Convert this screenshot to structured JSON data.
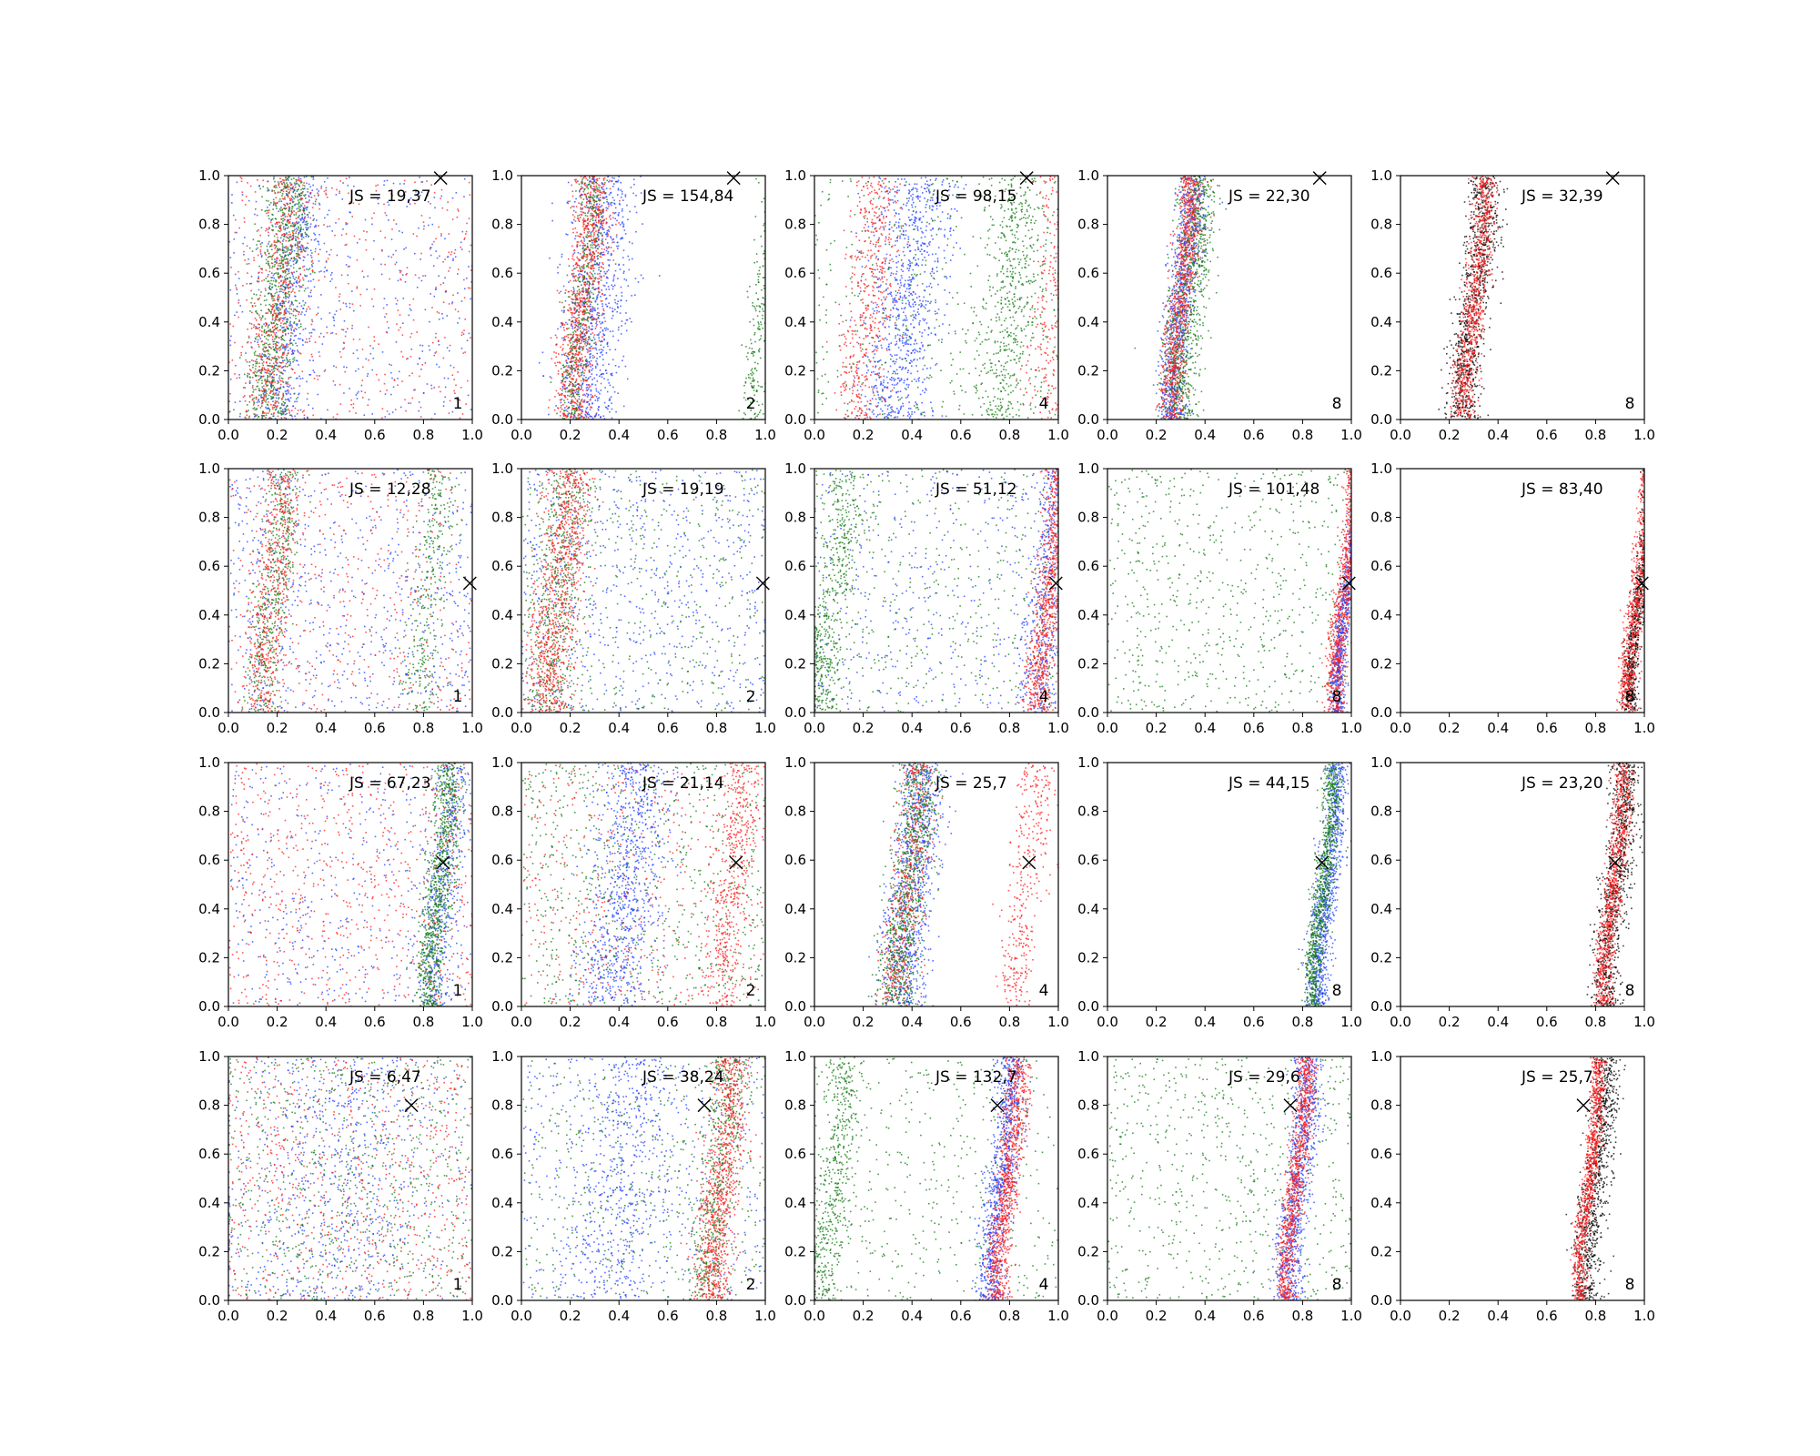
{
  "colors": {
    "blue": "#1f3fff",
    "green": "#127a12",
    "red": "#ff1a1a",
    "black": "#000000"
  },
  "chart_data": [
    {
      "type": "scatter",
      "row": 1,
      "col": 1,
      "js_label": "JS = 19,37",
      "corner_label": "1",
      "xlim": [
        0,
        1
      ],
      "ylim": [
        0,
        1
      ],
      "marker_x": [
        0.87,
        0.99
      ],
      "series": [
        {
          "color": "blue",
          "distribution": "diffuse + band",
          "band_center": 0.25,
          "band_width": 0.05
        },
        {
          "color": "green",
          "distribution": "band",
          "band_center": 0.2,
          "band_width": 0.05
        },
        {
          "color": "red",
          "distribution": "diffuse + band",
          "band_center": 0.2,
          "band_width": 0.05
        }
      ]
    },
    {
      "type": "scatter",
      "row": 1,
      "col": 2,
      "js_label": "JS = 154,84",
      "corner_label": "2",
      "xlim": [
        0,
        1
      ],
      "ylim": [
        0,
        1
      ],
      "marker_x": [
        0.87,
        0.99
      ],
      "series": [
        {
          "color": "blue",
          "distribution": "band",
          "band_center": 0.3,
          "band_width": 0.07
        },
        {
          "color": "green",
          "distribution": "bands",
          "band_center": 0.25,
          "band_width": 0.03,
          "band2_center": 0.99
        },
        {
          "color": "red",
          "distribution": "band",
          "band_center": 0.25,
          "band_width": 0.04
        }
      ]
    },
    {
      "type": "scatter",
      "row": 1,
      "col": 3,
      "js_label": "JS = 98,15",
      "corner_label": "4",
      "xlim": [
        0,
        1
      ],
      "ylim": [
        0,
        1
      ],
      "marker_x": [
        0.87,
        0.99
      ],
      "series": [
        {
          "color": "blue",
          "distribution": "band",
          "band_center": 0.37,
          "band_width": 0.08
        },
        {
          "color": "green",
          "distribution": "diffuse + band",
          "band_center": 0.8,
          "band_width": 0.06
        },
        {
          "color": "red",
          "distribution": "bands",
          "band_center": 0.22,
          "band_width": 0.05,
          "band2_center": 0.99
        }
      ]
    },
    {
      "type": "scatter",
      "row": 1,
      "col": 4,
      "js_label": "JS = 22,30",
      "corner_label": "8",
      "xlim": [
        0,
        1
      ],
      "ylim": [
        0,
        1
      ],
      "marker_x": [
        0.87,
        0.99
      ],
      "series": [
        {
          "color": "blue",
          "distribution": "band",
          "band_center": 0.3,
          "band_width": 0.03
        },
        {
          "color": "green",
          "distribution": "band",
          "band_center": 0.33,
          "band_width": 0.04
        },
        {
          "color": "red",
          "distribution": "band",
          "band_center": 0.3,
          "band_width": 0.025
        }
      ]
    },
    {
      "type": "scatter",
      "row": 1,
      "col": 5,
      "js_label": "JS = 32,39",
      "corner_label": "8",
      "xlim": [
        0,
        1
      ],
      "ylim": [
        0,
        1
      ],
      "marker_x": [
        0.87,
        0.99
      ],
      "series": [
        {
          "color": "black",
          "distribution": "band",
          "band_center": 0.3,
          "band_width": 0.035
        },
        {
          "color": "red",
          "distribution": "band",
          "band_center": 0.3,
          "band_width": 0.025
        }
      ]
    },
    {
      "type": "scatter",
      "row": 2,
      "col": 1,
      "js_label": "JS = 12,28",
      "corner_label": "1",
      "xlim": [
        0,
        1
      ],
      "ylim": [
        0,
        1
      ],
      "marker_x": [
        0.99,
        0.53
      ],
      "series": [
        {
          "color": "blue",
          "distribution": "diffuse",
          "band_center": 0.5,
          "band_width": 0.3
        },
        {
          "color": "green",
          "distribution": "bands",
          "band_center": 0.18,
          "band_width": 0.04,
          "band2_center": 0.82
        },
        {
          "color": "red",
          "distribution": "diffuse + band",
          "band_center": 0.18,
          "band_width": 0.04
        }
      ]
    },
    {
      "type": "scatter",
      "row": 2,
      "col": 2,
      "js_label": "JS = 19,19",
      "corner_label": "2",
      "xlim": [
        0,
        1
      ],
      "ylim": [
        0,
        1
      ],
      "marker_x": [
        0.99,
        0.53
      ],
      "series": [
        {
          "color": "blue",
          "distribution": "diffuse",
          "band_center": 0.5,
          "band_width": 0.3
        },
        {
          "color": "green",
          "distribution": "diffuse + band",
          "band_center": 0.15,
          "band_width": 0.05
        },
        {
          "color": "red",
          "distribution": "band",
          "band_center": 0.15,
          "band_width": 0.05
        }
      ]
    },
    {
      "type": "scatter",
      "row": 2,
      "col": 3,
      "js_label": "JS = 51,12",
      "corner_label": "4",
      "xlim": [
        0,
        1
      ],
      "ylim": [
        0,
        1
      ],
      "marker_x": [
        0.99,
        0.53
      ],
      "series": [
        {
          "color": "blue",
          "distribution": "diffuse + band",
          "band_center": 0.95,
          "band_width": 0.04
        },
        {
          "color": "green",
          "distribution": "diffuse + band",
          "band_center": 0.08,
          "band_width": 0.04
        },
        {
          "color": "red",
          "distribution": "band",
          "band_center": 0.96,
          "band_width": 0.03
        }
      ]
    },
    {
      "type": "scatter",
      "row": 2,
      "col": 4,
      "js_label": "JS = 101,48",
      "corner_label": "8",
      "xlim": [
        0,
        1
      ],
      "ylim": [
        0,
        1
      ],
      "marker_x": [
        0.99,
        0.53
      ],
      "series": [
        {
          "color": "green",
          "distribution": "diffuse",
          "band_center": 0.5,
          "band_width": 0.3
        },
        {
          "color": "blue",
          "distribution": "band",
          "band_center": 0.98,
          "band_width": 0.015
        },
        {
          "color": "red",
          "distribution": "band",
          "band_center": 0.97,
          "band_width": 0.02
        }
      ]
    },
    {
      "type": "scatter",
      "row": 2,
      "col": 5,
      "js_label": "JS = 83,40",
      "corner_label": "8",
      "xlim": [
        0,
        1
      ],
      "ylim": [
        0,
        1
      ],
      "marker_x": [
        0.99,
        0.53
      ],
      "series": [
        {
          "color": "black",
          "distribution": "band",
          "band_center": 0.98,
          "band_width": 0.015
        },
        {
          "color": "red",
          "distribution": "band",
          "band_center": 0.97,
          "band_width": 0.02
        }
      ]
    },
    {
      "type": "scatter",
      "row": 3,
      "col": 1,
      "js_label": "JS = 67,23",
      "corner_label": "1",
      "xlim": [
        0,
        1
      ],
      "ylim": [
        0,
        1
      ],
      "marker_x": [
        0.88,
        0.59
      ],
      "series": [
        {
          "color": "blue",
          "distribution": "diffuse + band",
          "band_center": 0.88,
          "band_width": 0.04
        },
        {
          "color": "green",
          "distribution": "band",
          "band_center": 0.86,
          "band_width": 0.03
        },
        {
          "color": "red",
          "distribution": "diffuse",
          "band_center": 0.5,
          "band_width": 0.3
        }
      ]
    },
    {
      "type": "scatter",
      "row": 3,
      "col": 2,
      "js_label": "JS = 21,14",
      "corner_label": "2",
      "xlim": [
        0,
        1
      ],
      "ylim": [
        0,
        1
      ],
      "marker_x": [
        0.88,
        0.59
      ],
      "series": [
        {
          "color": "blue",
          "distribution": "band",
          "band_center": 0.42,
          "band_width": 0.08
        },
        {
          "color": "green",
          "distribution": "diffuse",
          "band_center": 0.5,
          "band_width": 0.3
        },
        {
          "color": "red",
          "distribution": "diffuse + band",
          "band_center": 0.86,
          "band_width": 0.04
        }
      ]
    },
    {
      "type": "scatter",
      "row": 3,
      "col": 3,
      "js_label": "JS = 25,7",
      "corner_label": "4",
      "xlim": [
        0,
        1
      ],
      "ylim": [
        0,
        1
      ],
      "marker_x": [
        0.88,
        0.59
      ],
      "series": [
        {
          "color": "blue",
          "distribution": "band",
          "band_center": 0.4,
          "band_width": 0.05
        },
        {
          "color": "green",
          "distribution": "band",
          "band_center": 0.38,
          "band_width": 0.04
        },
        {
          "color": "red",
          "distribution": "bands",
          "band_center": 0.38,
          "band_width": 0.04,
          "band2_center": 0.86
        }
      ]
    },
    {
      "type": "scatter",
      "row": 3,
      "col": 4,
      "js_label": "JS = 44,15",
      "corner_label": "8",
      "xlim": [
        0,
        1
      ],
      "ylim": [
        0,
        1
      ],
      "marker_x": [
        0.88,
        0.59
      ],
      "series": [
        {
          "color": "blue",
          "distribution": "band",
          "band_center": 0.9,
          "band_width": 0.025
        },
        {
          "color": "green",
          "distribution": "band",
          "band_center": 0.88,
          "band_width": 0.02
        }
      ]
    },
    {
      "type": "scatter",
      "row": 3,
      "col": 5,
      "js_label": "JS = 23,20",
      "corner_label": "8",
      "xlim": [
        0,
        1
      ],
      "ylim": [
        0,
        1
      ],
      "marker_x": [
        0.88,
        0.59
      ],
      "series": [
        {
          "color": "black",
          "distribution": "band",
          "band_center": 0.88,
          "band_width": 0.03
        },
        {
          "color": "red",
          "distribution": "band",
          "band_center": 0.87,
          "band_width": 0.02
        }
      ]
    },
    {
      "type": "scatter",
      "row": 4,
      "col": 1,
      "js_label": "JS = 6,47",
      "corner_label": "1",
      "xlim": [
        0,
        1
      ],
      "ylim": [
        0,
        1
      ],
      "marker_x": [
        0.75,
        0.8
      ],
      "series": [
        {
          "color": "blue",
          "distribution": "band",
          "band_center": 0.45,
          "band_width": 0.25
        },
        {
          "color": "green",
          "distribution": "diffuse",
          "band_center": 0.5,
          "band_width": 0.3
        },
        {
          "color": "red",
          "distribution": "diffuse",
          "band_center": 0.5,
          "band_width": 0.3
        }
      ]
    },
    {
      "type": "scatter",
      "row": 4,
      "col": 2,
      "js_label": "JS = 38,24",
      "corner_label": "2",
      "xlim": [
        0,
        1
      ],
      "ylim": [
        0,
        1
      ],
      "marker_x": [
        0.75,
        0.8
      ],
      "series": [
        {
          "color": "blue",
          "distribution": "diffuse + band",
          "band_center": 0.4,
          "band_width": 0.1
        },
        {
          "color": "green",
          "distribution": "diffuse + band",
          "band_center": 0.8,
          "band_width": 0.04
        },
        {
          "color": "red",
          "distribution": "band",
          "band_center": 0.82,
          "band_width": 0.04
        }
      ]
    },
    {
      "type": "scatter",
      "row": 4,
      "col": 3,
      "js_label": "JS = 132,7",
      "corner_label": "4",
      "xlim": [
        0,
        1
      ],
      "ylim": [
        0,
        1
      ],
      "marker_x": [
        0.75,
        0.8
      ],
      "series": [
        {
          "color": "green",
          "distribution": "diffuse + band",
          "band_center": 0.08,
          "band_width": 0.04
        },
        {
          "color": "blue",
          "distribution": "band",
          "band_center": 0.76,
          "band_width": 0.03
        },
        {
          "color": "red",
          "distribution": "band",
          "band_center": 0.79,
          "band_width": 0.025
        }
      ]
    },
    {
      "type": "scatter",
      "row": 4,
      "col": 5,
      "js_label": "JS = 25,7",
      "corner_label": "8",
      "xlim": [
        0,
        1
      ],
      "ylim": [
        0,
        1
      ],
      "marker_x": [
        0.75,
        0.8
      ],
      "series": [
        {
          "color": "black",
          "distribution": "band",
          "band_center": 0.8,
          "band_width": 0.03
        },
        {
          "color": "red",
          "distribution": "band",
          "band_center": 0.77,
          "band_width": 0.015
        }
      ]
    },
    {
      "type": "scatter",
      "row": 4,
      "col": 4,
      "js_label": "JS = 29,6",
      "corner_label": "8",
      "xlim": [
        0,
        1
      ],
      "ylim": [
        0,
        1
      ],
      "marker_x": [
        0.75,
        0.8
      ],
      "series": [
        {
          "color": "green",
          "distribution": "diffuse",
          "band_center": 0.5,
          "band_width": 0.3
        },
        {
          "color": "blue",
          "distribution": "band",
          "band_center": 0.78,
          "band_width": 0.03
        },
        {
          "color": "red",
          "distribution": "band",
          "band_center": 0.77,
          "band_width": 0.02
        }
      ]
    }
  ],
  "ticks": [
    "0.0",
    "0.2",
    "0.4",
    "0.6",
    "0.8",
    "1.0"
  ]
}
